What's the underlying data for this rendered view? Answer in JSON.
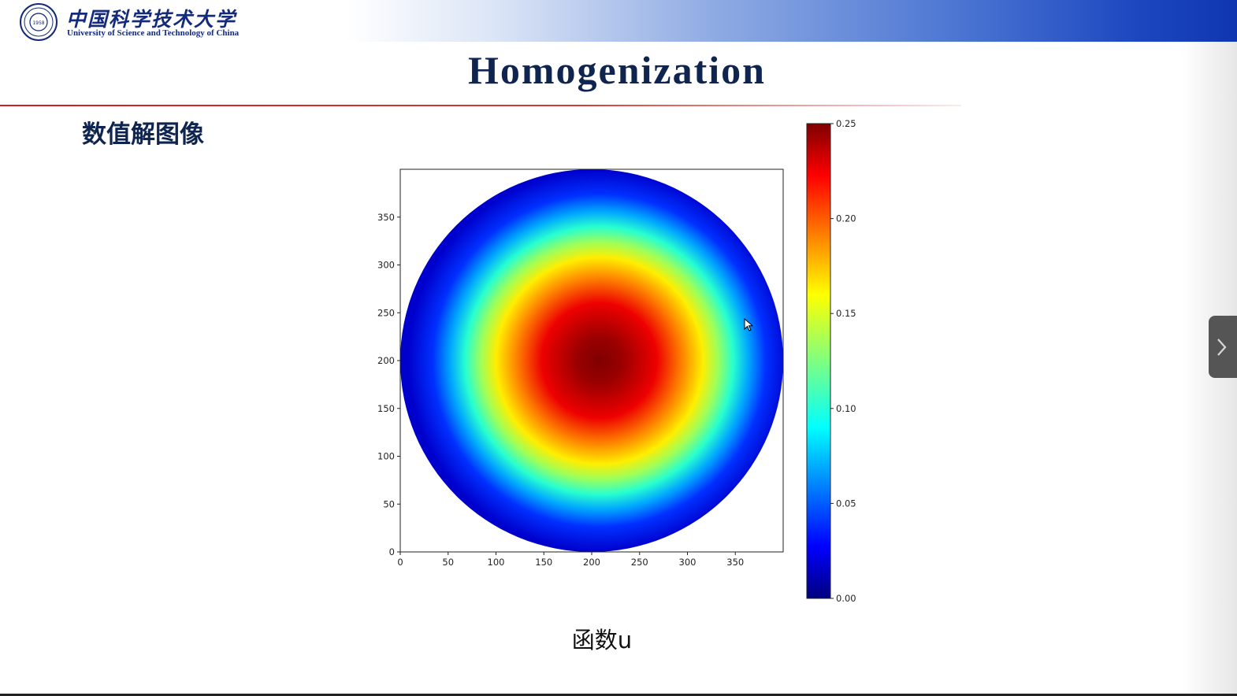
{
  "header": {
    "logo_cn": "中国科学技术大学",
    "logo_en": "University of Science and Technology of China",
    "seal_year": "1958"
  },
  "slide": {
    "title": "Homogenization",
    "section_heading": "数值解图像",
    "caption": "函数u"
  },
  "chart_data": {
    "type": "heatmap",
    "title": "",
    "xlabel": "",
    "ylabel": "",
    "x_ticks": [
      "0",
      "50",
      "100",
      "150",
      "200",
      "250",
      "300",
      "350"
    ],
    "y_ticks": [
      "0",
      "50",
      "100",
      "150",
      "200",
      "250",
      "300",
      "350"
    ],
    "xlim": [
      0,
      400
    ],
    "ylim": [
      0,
      400
    ],
    "domain": "disk",
    "disk_center": [
      200,
      200
    ],
    "disk_radius": 200,
    "peak_value": 0.25,
    "peak_location": [
      205,
      200
    ],
    "colormap": "jet",
    "colorbar": {
      "ticks": [
        "0.00",
        "0.05",
        "0.10",
        "0.15",
        "0.20",
        "0.25"
      ],
      "range": [
        0,
        0.25
      ]
    },
    "grid": false
  },
  "colors": {
    "title": "#0f2550",
    "rule": "#cc1f1f",
    "band_end": "#0f36b0"
  },
  "icons": {
    "next": "chevron-right-icon",
    "cursor": "mouse-pointer-icon",
    "logo": "university-seal-icon"
  }
}
